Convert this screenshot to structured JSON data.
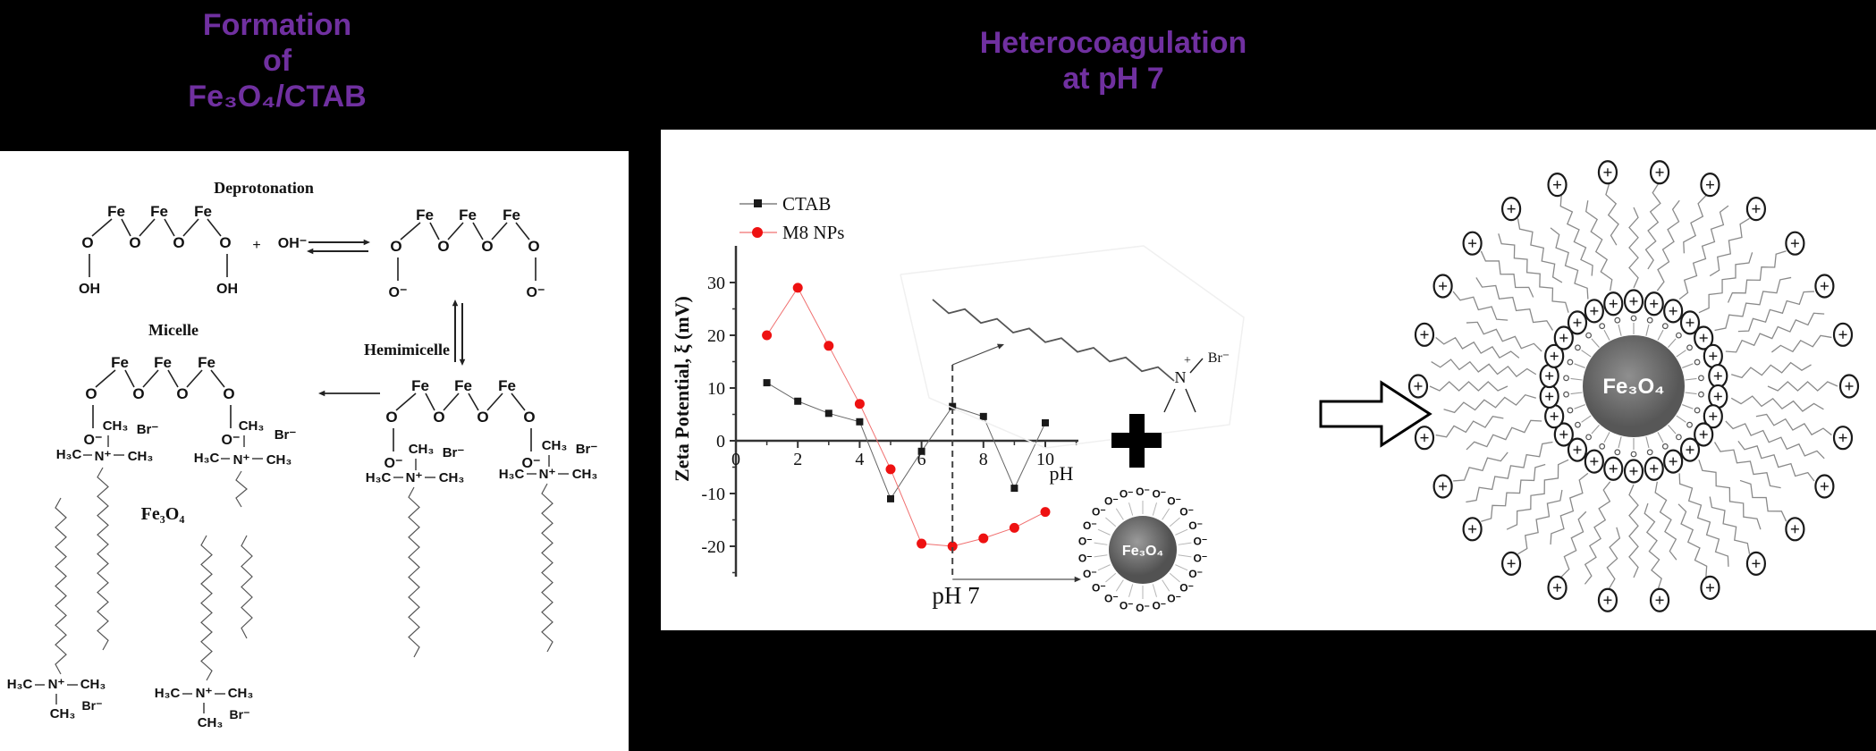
{
  "page": {
    "background": "#000000",
    "accent_purple": "#7030A0",
    "panel_color": "#ffffff"
  },
  "titles": {
    "left_line1": "Formation",
    "left_line2": "of",
    "left_line3": "Fe₃O₄/CTAB",
    "right_line1": "Heterocoagulation",
    "right_line2": "at pH 7"
  },
  "scheme": {
    "step_label_deprotonation": "Deprotonation",
    "label_micelle": "Micelle",
    "label_hemimicelle": "Hemimicelle",
    "label_fe3o4": "Fe₃O₄",
    "plus": "+",
    "hydroxide": "OH⁻",
    "atoms": {
      "fe": "Fe",
      "o": "O",
      "oh": "OH",
      "o_minus": "O⁻",
      "ch3": "CH₃",
      "h3c": "H₃C",
      "n_plus": "N⁺",
      "br_minus": "Br⁻"
    }
  },
  "chart_data": {
    "type": "line",
    "x": [
      1,
      2,
      3,
      4,
      5,
      6,
      7,
      8,
      9,
      10
    ],
    "series": [
      {
        "name": "CTAB",
        "color": "#1a1a1a",
        "line_color": "#666666",
        "marker": "square",
        "values": [
          11,
          7.5,
          5.2,
          3.6,
          -11,
          -2,
          6.5,
          4.6,
          -9,
          3.4
        ]
      },
      {
        "name": "M8 NPs",
        "color": "#ee1111",
        "line_color": "#f07070",
        "marker": "circle",
        "values": [
          20,
          29,
          18,
          7,
          -5.4,
          -19.5,
          -20,
          -18.5,
          -16.5,
          -13.5
        ]
      }
    ],
    "title": "",
    "xlabel": "pH",
    "ylabel": "Zeta Potential, ξ (mV)",
    "xticks": [
      0,
      2,
      4,
      6,
      8,
      10
    ],
    "yticks": [
      30,
      20,
      10,
      0,
      -10,
      -20
    ],
    "xlim": [
      0,
      11.1
    ],
    "ylim": [
      -26,
      37
    ],
    "grid": false,
    "legend_position": "top-left",
    "annotations": {
      "dashed_x": 7,
      "dashed_label": "pH 7"
    }
  },
  "hetero": {
    "plus": "+",
    "ctab_n": "N",
    "ctab_charge": "+",
    "br_minus": "Br⁻",
    "np_label": "Fe₃O₄",
    "np_shell_group": "O⁻",
    "product_label": "Fe₃O₄",
    "head_charge": "+"
  }
}
